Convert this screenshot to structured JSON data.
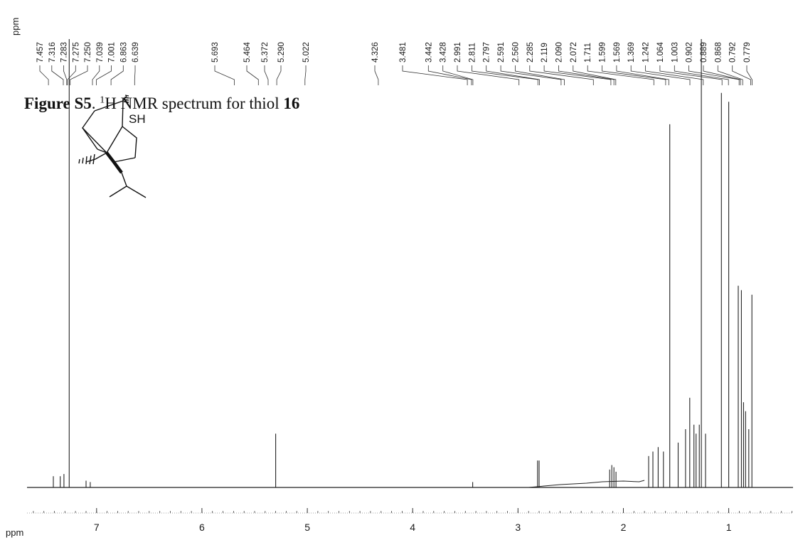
{
  "caption": {
    "figure_label": "Figure S5",
    "text_before": ". ",
    "superscript": "1",
    "text_after": "H NMR spectrum for thiol ",
    "compound_number": "16"
  },
  "structure": {
    "heteroatom_label": "SH"
  },
  "chart_data": {
    "type": "line",
    "title": "",
    "xlabel": "ppm",
    "ylabel": "",
    "x_axis_reversed": true,
    "xlim": [
      7.66,
      0.39
    ],
    "x_ticks": [
      7,
      6,
      5,
      4,
      3,
      2,
      1
    ],
    "x_tick_labels": [
      "7",
      "6",
      "5",
      "4",
      "3",
      "2",
      "1"
    ],
    "peak_list_unit": "ppm",
    "peak_list": [
      "7.457",
      "7.316",
      "7.283",
      "7.275",
      "7.250",
      "7.039",
      "7.001",
      "6.863",
      "6.639",
      "5.693",
      "5.464",
      "5.372",
      "5.290",
      "5.022",
      "4.326",
      "3.481",
      "3.442",
      "3.428",
      "2.991",
      "2.811",
      "2.797",
      "2.591",
      "2.560",
      "2.285",
      "2.119",
      "2.090",
      "2.072",
      "1.711",
      "1.599",
      "1.569",
      "1.369",
      "1.242",
      "1.064",
      "1.003",
      "0.902",
      "0.889",
      "0.868",
      "0.792",
      "0.779"
    ],
    "signals": [
      {
        "x": 7.41,
        "intensity": 0.025
      },
      {
        "x": 7.345,
        "intensity": 0.025
      },
      {
        "x": 7.31,
        "intensity": 0.03
      },
      {
        "x": 7.26,
        "intensity": 1.0
      },
      {
        "x": 7.1,
        "intensity": 0.015
      },
      {
        "x": 7.06,
        "intensity": 0.012
      },
      {
        "x": 5.3,
        "intensity": 0.12
      },
      {
        "x": 3.43,
        "intensity": 0.012
      },
      {
        "x": 2.815,
        "intensity": 0.06
      },
      {
        "x": 2.8,
        "intensity": 0.06
      },
      {
        "x": 2.13,
        "intensity": 0.04
      },
      {
        "x": 2.11,
        "intensity": 0.05
      },
      {
        "x": 2.09,
        "intensity": 0.045
      },
      {
        "x": 2.07,
        "intensity": 0.035
      },
      {
        "x": 1.76,
        "intensity": 0.07
      },
      {
        "x": 1.72,
        "intensity": 0.08
      },
      {
        "x": 1.67,
        "intensity": 0.09
      },
      {
        "x": 1.62,
        "intensity": 0.08
      },
      {
        "x": 1.56,
        "intensity": 0.81
      },
      {
        "x": 1.48,
        "intensity": 0.1
      },
      {
        "x": 1.41,
        "intensity": 0.13
      },
      {
        "x": 1.37,
        "intensity": 0.2
      },
      {
        "x": 1.33,
        "intensity": 0.14
      },
      {
        "x": 1.31,
        "intensity": 0.12
      },
      {
        "x": 1.28,
        "intensity": 0.14
      },
      {
        "x": 1.26,
        "intensity": 1.0
      },
      {
        "x": 1.22,
        "intensity": 0.12
      },
      {
        "x": 1.07,
        "intensity": 0.88
      },
      {
        "x": 1.0,
        "intensity": 0.86
      },
      {
        "x": 0.91,
        "intensity": 0.45
      },
      {
        "x": 0.88,
        "intensity": 0.44
      },
      {
        "x": 0.86,
        "intensity": 0.19
      },
      {
        "x": 0.84,
        "intensity": 0.17
      },
      {
        "x": 0.81,
        "intensity": 0.13
      },
      {
        "x": 0.78,
        "intensity": 0.43
      }
    ]
  }
}
